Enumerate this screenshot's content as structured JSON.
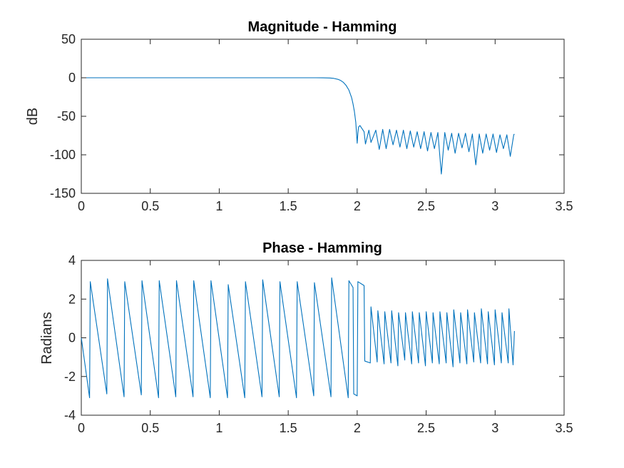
{
  "chart_data": [
    {
      "type": "line",
      "title": "Magnitude - Hamming",
      "xlabel": "",
      "ylabel": "dB",
      "xlim": [
        0,
        3.5
      ],
      "ylim": [
        -150,
        50
      ],
      "xticks": [
        "0",
        "0.5",
        "1",
        "1.5",
        "2",
        "2.5",
        "3",
        "3.5"
      ],
      "yticks": [
        "50",
        "0",
        "-50",
        "-100",
        "-150"
      ],
      "grid": false,
      "color": "#0072BD",
      "series": [
        {
          "x": [
            0,
            0.2,
            0.4,
            0.6,
            0.8,
            1.0,
            1.2,
            1.4,
            1.6,
            1.7,
            1.75,
            1.8,
            1.83,
            1.86,
            1.88,
            1.9,
            1.92,
            1.94,
            1.96,
            1.97,
            1.98,
            1.99,
            2.0,
            2.005,
            2.01,
            2.02,
            2.035,
            2.05,
            2.06,
            2.085,
            2.1,
            2.135,
            2.16,
            2.185,
            2.21,
            2.235,
            2.26,
            2.285,
            2.31,
            2.335,
            2.36,
            2.385,
            2.41,
            2.435,
            2.46,
            2.485,
            2.51,
            2.535,
            2.56,
            2.585,
            2.61,
            2.635,
            2.66,
            2.685,
            2.71,
            2.735,
            2.76,
            2.785,
            2.81,
            2.835,
            2.86,
            2.885,
            2.91,
            2.935,
            2.96,
            2.985,
            3.01,
            3.035,
            3.06,
            3.085,
            3.11,
            3.135,
            3.14
          ],
          "y": [
            0,
            0,
            0,
            0,
            0,
            0,
            0,
            0,
            0,
            0,
            -0.1,
            -0.3,
            -0.8,
            -2,
            -3.5,
            -6,
            -10,
            -16,
            -26,
            -34,
            -44,
            -58,
            -85,
            -72,
            -64,
            -62,
            -66,
            -70,
            -86,
            -68,
            -84,
            -68,
            -93,
            -67,
            -92,
            -67,
            -87,
            -68,
            -90,
            -68,
            -92,
            -69,
            -90,
            -70,
            -92,
            -70,
            -95,
            -71,
            -92,
            -71,
            -125,
            -71,
            -94,
            -72,
            -98,
            -72,
            -91,
            -72,
            -96,
            -73,
            -113,
            -73,
            -98,
            -73,
            -94,
            -73,
            -97,
            -74,
            -92,
            -74,
            -102,
            -74,
            -73
          ]
        }
      ]
    },
    {
      "type": "line",
      "title": "Phase - Hamming",
      "xlabel": "",
      "ylabel": "Radians",
      "xlim": [
        0,
        3.5
      ],
      "ylim": [
        -4,
        4
      ],
      "xticks": [
        "0",
        "0.5",
        "1",
        "1.5",
        "2",
        "2.5",
        "3",
        "3.5"
      ],
      "yticks": [
        "4",
        "2",
        "0",
        "-2",
        "-4"
      ],
      "grid": false,
      "color": "#0072BD",
      "series": [
        {
          "x": [
            0,
            0.06,
            0.065,
            0.185,
            0.19,
            0.31,
            0.315,
            0.435,
            0.44,
            0.56,
            0.565,
            0.685,
            0.69,
            0.81,
            0.815,
            0.935,
            0.94,
            1.06,
            1.065,
            1.185,
            1.19,
            1.31,
            1.315,
            1.435,
            1.44,
            1.56,
            1.565,
            1.685,
            1.69,
            1.81,
            1.815,
            1.935,
            1.94,
            1.97,
            1.975,
            2.0,
            2.005,
            2.05,
            2.055,
            2.095,
            2.1,
            2.145,
            2.15,
            2.195,
            2.2,
            2.245,
            2.25,
            2.295,
            2.3,
            2.345,
            2.35,
            2.395,
            2.4,
            2.445,
            2.45,
            2.495,
            2.5,
            2.545,
            2.55,
            2.595,
            2.6,
            2.645,
            2.65,
            2.695,
            2.7,
            2.745,
            2.75,
            2.795,
            2.8,
            2.845,
            2.85,
            2.895,
            2.9,
            2.945,
            2.95,
            2.995,
            3.0,
            3.045,
            3.05,
            3.095,
            3.1,
            3.13,
            3.14
          ],
          "y": [
            0,
            -3.1,
            2.9,
            -2.9,
            3.05,
            -3.05,
            2.9,
            -2.95,
            2.95,
            -3.1,
            2.95,
            -3.05,
            2.95,
            -3.05,
            2.95,
            -3.1,
            2.95,
            -3.1,
            2.75,
            -3.1,
            2.9,
            -3.05,
            3.0,
            -3.05,
            2.9,
            -3.1,
            2.9,
            -3.0,
            2.85,
            -3.05,
            3.1,
            -3.1,
            2.95,
            2.6,
            -2.9,
            -3.0,
            2.9,
            2.7,
            -1.2,
            -1.3,
            1.6,
            -1.25,
            1.4,
            -1.35,
            1.35,
            -1.3,
            1.4,
            -1.45,
            1.3,
            -1.15,
            1.3,
            -1.35,
            1.35,
            -1.3,
            1.3,
            -1.45,
            1.35,
            -1.3,
            1.3,
            -1.35,
            1.35,
            -1.3,
            1.3,
            -1.5,
            1.45,
            -1.3,
            1.3,
            -1.35,
            1.45,
            -1.25,
            1.3,
            -1.3,
            1.5,
            -1.35,
            1.35,
            -1.4,
            1.45,
            -1.3,
            1.3,
            -1.3,
            1.5,
            -1.4,
            0.35
          ]
        }
      ]
    }
  ]
}
